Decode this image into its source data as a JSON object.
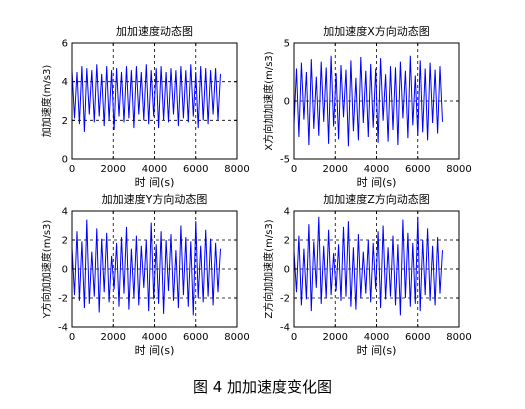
{
  "caption": "图 4  加加速度变化图",
  "chart_data": [
    {
      "type": "line",
      "title": "加加速度动态图",
      "xlabel": "时 间(s)",
      "ylabel": "加加速度(m/s3)",
      "xlim": [
        0,
        8000
      ],
      "ylim": [
        0,
        6
      ],
      "xticks": [
        0,
        2000,
        4000,
        6000,
        8000
      ],
      "yticks": [
        0,
        2,
        4,
        6
      ],
      "grid": "dashed",
      "color": "#0000ff",
      "series": [
        {
          "x": [
            0,
            120,
            240,
            360,
            480,
            600,
            720,
            840,
            960,
            1080,
            1200,
            1320,
            1440,
            1560,
            1680,
            1800,
            1920,
            2040,
            2160,
            2280,
            2400,
            2520,
            2640,
            2760,
            2880,
            3000,
            3120,
            3240,
            3360,
            3480,
            3600,
            3720,
            3840,
            3960,
            4080,
            4200,
            4320,
            4440,
            4560,
            4680,
            4800,
            4920,
            5040,
            5160,
            5280,
            5400,
            5520,
            5640,
            5760,
            5880,
            6000,
            6120,
            6240,
            6360,
            6480,
            6600,
            6720,
            6840,
            6960,
            7080,
            7200
          ],
          "y": [
            4.6,
            2.1,
            4.5,
            1.8,
            4.8,
            1.4,
            4.7,
            2.3,
            4.6,
            1.9,
            4.9,
            2.2,
            4.4,
            1.7,
            4.8,
            2.0,
            4.6,
            1.5,
            4.7,
            2.2,
            4.5,
            1.9,
            4.8,
            2.1,
            4.6,
            1.6,
            4.8,
            2.3,
            4.5,
            2.0,
            4.9,
            1.8,
            4.6,
            2.2,
            4.7,
            1.6,
            4.8,
            2.0,
            4.5,
            1.9,
            4.7,
            2.3,
            4.6,
            1.7,
            4.8,
            2.1,
            4.6,
            1.9,
            4.9,
            2.2,
            4.5,
            1.6,
            4.8,
            2.0,
            4.7,
            1.8,
            4.6,
            2.3,
            4.7,
            2.0,
            4.4
          ]
        }
      ]
    },
    {
      "type": "line",
      "title": "加加速度X方向动态图",
      "xlabel": "时 间(s)",
      "ylabel": "X方向加加速度(m/s3)",
      "xlim": [
        0,
        8000
      ],
      "ylim": [
        -5,
        5
      ],
      "xticks": [
        0,
        2000,
        4000,
        6000,
        8000
      ],
      "yticks": [
        -5,
        0,
        5
      ],
      "grid": "dashed",
      "color": "#0000ff",
      "series": [
        {
          "x": [
            0,
            120,
            240,
            360,
            480,
            600,
            720,
            840,
            960,
            1080,
            1200,
            1320,
            1440,
            1560,
            1680,
            1800,
            1920,
            2040,
            2160,
            2280,
            2400,
            2520,
            2640,
            2760,
            2880,
            3000,
            3120,
            3240,
            3360,
            3480,
            3600,
            3720,
            3840,
            3960,
            4080,
            4200,
            4320,
            4440,
            4560,
            4680,
            4800,
            4920,
            5040,
            5160,
            5280,
            5400,
            5520,
            5640,
            5760,
            5880,
            6000,
            6120,
            6240,
            6360,
            6480,
            6600,
            6720,
            6840,
            6960,
            7080,
            7200
          ],
          "y": [
            -2.0,
            2.8,
            -3.1,
            3.3,
            -1.6,
            2.5,
            -3.8,
            3.6,
            -2.4,
            2.1,
            -3.0,
            3.4,
            -1.8,
            2.9,
            -3.7,
            3.9,
            -2.2,
            2.4,
            -3.3,
            3.1,
            -1.4,
            2.7,
            -3.9,
            3.5,
            -2.6,
            2.0,
            -3.4,
            3.8,
            -1.9,
            2.6,
            -3.1,
            3.2,
            -2.3,
            2.8,
            -3.6,
            3.7,
            -1.7,
            2.3,
            -3.5,
            3.0,
            -2.5,
            2.9,
            -3.8,
            3.4,
            -1.5,
            2.6,
            -3.2,
            3.9,
            -2.1,
            2.2,
            -3.0,
            3.5,
            -2.7,
            2.8,
            -3.4,
            3.3,
            -1.9,
            2.7,
            -2.8,
            3.0,
            -1.8
          ]
        }
      ]
    },
    {
      "type": "line",
      "title": "加加速度Y方向动态图",
      "xlabel": "时 间(s)",
      "ylabel": "Y方向加加速度(m/s3)",
      "xlim": [
        0,
        8000
      ],
      "ylim": [
        -4,
        4
      ],
      "xticks": [
        0,
        2000,
        4000,
        6000,
        8000
      ],
      "yticks": [
        -4,
        -2,
        0,
        2,
        4
      ],
      "grid": "dashed",
      "color": "#0000ff",
      "series": [
        {
          "x": [
            0,
            120,
            240,
            360,
            480,
            600,
            720,
            840,
            960,
            1080,
            1200,
            1320,
            1440,
            1560,
            1680,
            1800,
            1920,
            2040,
            2160,
            2280,
            2400,
            2520,
            2640,
            2760,
            2880,
            3000,
            3120,
            3240,
            3360,
            3480,
            3600,
            3720,
            3840,
            3960,
            4080,
            4200,
            4320,
            4440,
            4560,
            4680,
            4800,
            4920,
            5040,
            5160,
            5280,
            5400,
            5520,
            5640,
            5760,
            5880,
            6000,
            6120,
            6240,
            6360,
            6480,
            6600,
            6720,
            6840,
            6960,
            7080,
            7200
          ],
          "y": [
            1.5,
            -1.8,
            2.6,
            -2.2,
            1.9,
            -2.7,
            3.4,
            -2.4,
            1.2,
            -1.9,
            2.8,
            -3.0,
            2.1,
            -1.6,
            2.5,
            -2.3,
            0.9,
            -1.4,
            1.8,
            -2.6,
            2.2,
            -1.7,
            2.9,
            -2.8,
            1.4,
            -2.0,
            2.3,
            -2.5,
            1.6,
            -1.3,
            2.0,
            -2.9,
            3.2,
            -2.1,
            1.7,
            -2.4,
            2.6,
            -3.1,
            2.0,
            -1.5,
            2.4,
            -2.2,
            1.3,
            -2.7,
            3.0,
            -1.8,
            2.2,
            -2.6,
            1.9,
            -3.2,
            3.3,
            -2.0,
            1.6,
            -2.3,
            2.7,
            -1.9,
            2.1,
            -2.5,
            1.8,
            -1.6,
            1.4
          ]
        }
      ]
    },
    {
      "type": "line",
      "title": "加加速度Z方向动态图",
      "xlabel": "时 间(s)",
      "ylabel": "Z方向加加速度(m/s3)",
      "xlim": [
        0,
        8000
      ],
      "ylim": [
        -4,
        4
      ],
      "xticks": [
        0,
        2000,
        4000,
        6000,
        8000
      ],
      "yticks": [
        -4,
        -2,
        0,
        2,
        4
      ],
      "grid": "dashed",
      "color": "#0000ff",
      "series": [
        {
          "x": [
            0,
            120,
            240,
            360,
            480,
            600,
            720,
            840,
            960,
            1080,
            1200,
            1320,
            1440,
            1560,
            1680,
            1800,
            1920,
            2040,
            2160,
            2280,
            2400,
            2520,
            2640,
            2760,
            2880,
            3000,
            3120,
            3240,
            3360,
            3480,
            3600,
            3720,
            3840,
            3960,
            4080,
            4200,
            4320,
            4440,
            4560,
            4680,
            4800,
            4920,
            5040,
            5160,
            5280,
            5400,
            5520,
            5640,
            5760,
            5880,
            6000,
            6120,
            6240,
            6360,
            6480,
            6600,
            6720,
            6840,
            6960,
            7080,
            7200
          ],
          "y": [
            1.2,
            -1.6,
            2.3,
            -2.5,
            1.4,
            -2.1,
            3.1,
            -2.9,
            1.9,
            -1.3,
            3.6,
            -2.4,
            1.6,
            -2.0,
            2.7,
            -1.8,
            1.1,
            -1.5,
            1.7,
            -2.2,
            2.9,
            -1.9,
            3.3,
            -2.6,
            1.5,
            -2.8,
            2.4,
            -2.0,
            1.2,
            -1.7,
            2.0,
            -2.3,
            1.8,
            -1.4,
            2.6,
            -2.7,
            3.0,
            -2.1,
            1.5,
            -1.9,
            2.3,
            -2.5,
            1.7,
            -3.2,
            3.4,
            -2.0,
            2.5,
            -2.6,
            1.8,
            -2.4,
            3.6,
            -2.9,
            2.0,
            -1.8,
            2.8,
            -2.2,
            1.6,
            -2.5,
            2.2,
            -1.7,
            1.3
          ]
        }
      ]
    }
  ]
}
